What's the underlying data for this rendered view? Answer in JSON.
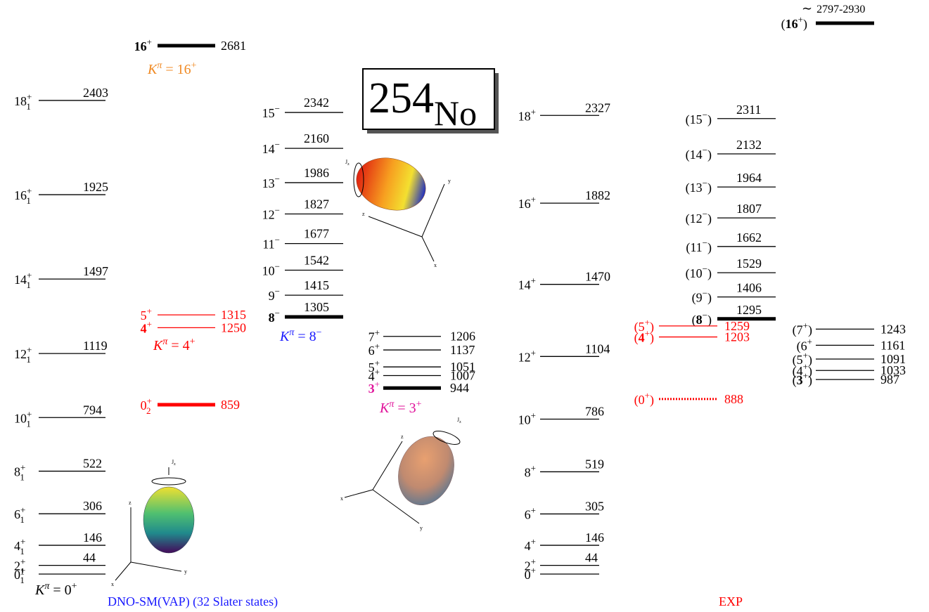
{
  "title": {
    "mass": "254",
    "element": "No"
  },
  "captions": {
    "theory": "DNO-SM(VAP) (32 Slater states)",
    "experiment": "EXP"
  },
  "ellipsoid_labels": {
    "spin": "J",
    "spin_sub": "z",
    "x": "x",
    "y": "y",
    "z": "z"
  },
  "columns": [
    {
      "levels": [
        {
          "base": "0",
          "sub": "1",
          "sup": "+"
        },
        {
          "base": "2",
          "sub": "1",
          "sup": "+",
          "energy": 44
        },
        {
          "base": "4",
          "sub": "1",
          "sup": "+",
          "energy": 146
        },
        {
          "base": "6",
          "sub": "1",
          "sup": "+",
          "energy": 306
        },
        {
          "base": "8",
          "sub": "1",
          "sup": "+",
          "energy": 522
        },
        {
          "base": "10",
          "sub": "1",
          "sup": "+",
          "energy": 794
        },
        {
          "base": "12",
          "sub": "1",
          "sup": "+",
          "energy": 1119
        },
        {
          "base": "14",
          "sub": "1",
          "sup": "+",
          "energy": 1497
        },
        {
          "base": "16",
          "sub": "1",
          "sup": "+",
          "energy": 1925
        },
        {
          "base": "18",
          "sub": "1",
          "sup": "+",
          "energy": 2403
        }
      ]
    },
    {
      "levels": [
        {
          "base": "16",
          "sup": "+",
          "energy": 2681,
          "bold": true,
          "thick": true
        },
        {
          "base": "5",
          "sup": "+",
          "energy": 1315,
          "color": "#ff0000"
        },
        {
          "base": "4",
          "sup": "+",
          "energy": 1250,
          "color": "#ff0000",
          "bold": true
        },
        {
          "base": "0",
          "sub": "2",
          "sup": "+",
          "energy": 859,
          "color": "#ff0000",
          "thick": true
        }
      ]
    },
    {
      "levels": [
        {
          "base": "8",
          "sup": "−",
          "energy": 1305,
          "bold": true,
          "thick": true
        },
        {
          "base": "9",
          "sup": "−",
          "energy": 1415
        },
        {
          "base": "10",
          "sup": "−",
          "energy": 1542
        },
        {
          "base": "11",
          "sup": "−",
          "energy": 1677
        },
        {
          "base": "12",
          "sup": "−",
          "energy": 1827
        },
        {
          "base": "13",
          "sup": "−",
          "energy": 1986
        },
        {
          "base": "14",
          "sup": "−",
          "energy": 2160
        },
        {
          "base": "15",
          "sup": "−",
          "energy": 2342
        }
      ]
    },
    {
      "levels": [
        {
          "base": "3",
          "sup": "+",
          "energy": 944,
          "bold": true,
          "thick": true,
          "label_color": "#e0129a"
        },
        {
          "base": "4",
          "sup": "+",
          "energy": 1007
        },
        {
          "base": "5",
          "sup": "+",
          "energy": 1051
        },
        {
          "base": "6",
          "sup": "+",
          "energy": 1137
        },
        {
          "base": "7",
          "sup": "+",
          "energy": 1206
        }
      ]
    },
    {
      "levels": [
        {
          "base": "0",
          "sup": "+"
        },
        {
          "base": "2",
          "sup": "+",
          "energy": 44
        },
        {
          "base": "4",
          "sup": "+",
          "energy": 146
        },
        {
          "base": "6",
          "sup": "+",
          "energy": 305
        },
        {
          "base": "8",
          "sup": "+",
          "energy": 519
        },
        {
          "base": "10",
          "sup": "+",
          "energy": 786
        },
        {
          "base": "12",
          "sup": "+",
          "energy": 1104
        },
        {
          "base": "14",
          "sup": "+",
          "energy": 1470
        },
        {
          "base": "16",
          "sup": "+",
          "energy": 1882
        },
        {
          "base": "18",
          "sup": "+",
          "energy": 2327
        }
      ]
    },
    {
      "levels": [
        {
          "pre": "(",
          "base": "8",
          "sup": "−",
          "post": ")",
          "energy": 1295,
          "bold": true,
          "thick": true
        },
        {
          "pre": "(",
          "base": "9",
          "sup": "−",
          "post": ")",
          "energy": 1406
        },
        {
          "pre": "(",
          "base": "10",
          "sup": "−",
          "post": ")",
          "energy": 1529
        },
        {
          "pre": "(",
          "base": "11",
          "sup": "−",
          "post": ")",
          "energy": 1662
        },
        {
          "pre": "(",
          "base": "12",
          "sup": "−",
          "post": ")",
          "energy": 1807
        },
        {
          "pre": "(",
          "base": "13",
          "sup": "−",
          "post": ")",
          "energy": 1964
        },
        {
          "pre": "(",
          "base": "14",
          "sup": "−",
          "post": ")",
          "energy": 2132
        },
        {
          "pre": "(",
          "base": "15",
          "sup": "−",
          "post": ")",
          "energy": 2311
        }
      ]
    },
    {
      "levels": [
        {
          "pre": "(",
          "base": "5",
          "sup": "+",
          "post": ")",
          "energy": 1259,
          "color": "#ff0000"
        },
        {
          "pre": "(",
          "base": "4",
          "sup": "+",
          "post": ")",
          "energy": 1203,
          "color": "#ff0000",
          "bold": true
        },
        {
          "pre": "(",
          "base": "0",
          "sup": "+",
          "post": ")",
          "energy": 888,
          "color": "#ff0000",
          "dotted": true
        }
      ]
    },
    {
      "levels": [
        {
          "pre": "(",
          "base": "3",
          "sup": "+",
          "post": ")",
          "energy": 987,
          "bold": true
        },
        {
          "pre": "(",
          "base": "4",
          "sup": "+",
          "post": ")",
          "energy": 1033
        },
        {
          "pre": "(",
          "base": "5",
          "sup": "+",
          "post": ")",
          "energy": 1091
        },
        {
          "pre": "(",
          "base": "6",
          "sup": "+",
          "energy": 1161
        },
        {
          "pre": "(",
          "base": "7",
          "sup": "+",
          "post": ")",
          "energy": 1243
        }
      ]
    },
    {
      "levels": [
        {
          "pre": "(",
          "base": "16",
          "sup": "+",
          "post": ")",
          "bold": true,
          "thick": true,
          "approx": "∼",
          "energy_range": "2797-2930"
        }
      ]
    }
  ],
  "bands": [
    {
      "k": "K",
      "pi": "π",
      "rest": " = 16",
      "sup": "+",
      "color": "#f08a24"
    },
    {
      "k": "K",
      "pi": "π",
      "rest": " = 4",
      "sup": "+",
      "color": "#ff0000"
    },
    {
      "k": "K",
      "pi": "π",
      "rest": " = 8",
      "sup": "−",
      "color": "#1a1aff"
    },
    {
      "k": "K",
      "pi": "π",
      "rest": " = 3",
      "sup": "+",
      "color": "#e0129a"
    },
    {
      "k": "K",
      "pi": "π",
      "rest": " = 0",
      "sup": "+",
      "color": "#000000"
    }
  ]
}
